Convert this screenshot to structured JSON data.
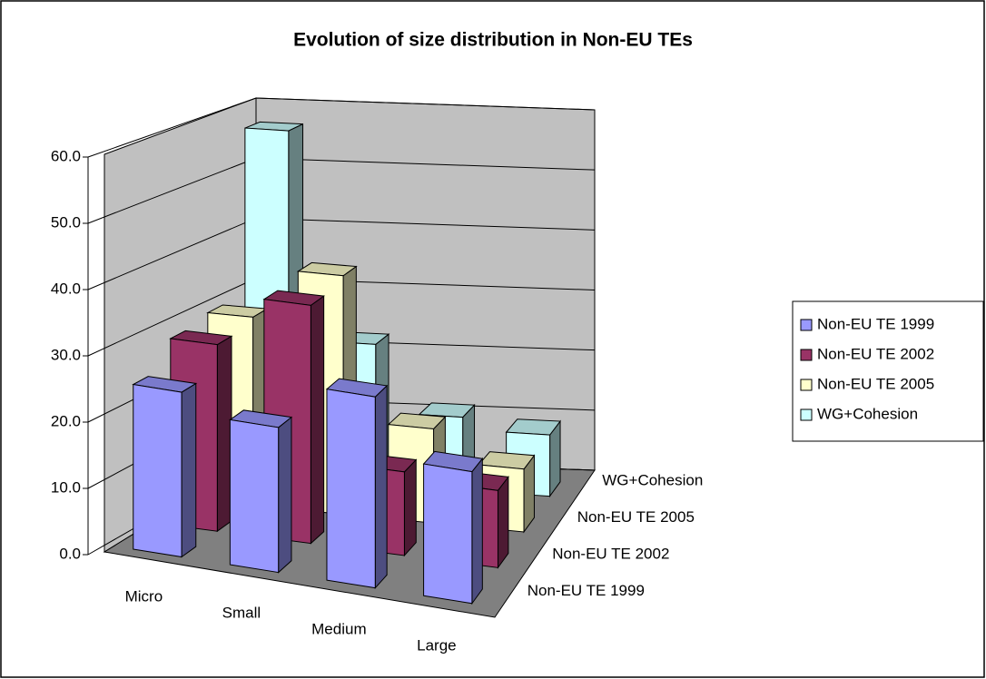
{
  "chart_data": {
    "type": "bar3d",
    "title": "Evolution of size distribution in Non-EU TEs",
    "categories": [
      "Micro",
      "Small",
      "Medium",
      "Large"
    ],
    "series": [
      {
        "name": "Non-EU TE 1999",
        "color": "#9999ff",
        "values": [
          25,
          22,
          29,
          20
        ]
      },
      {
        "name": "Non-EU TE 2002",
        "color": "#993366",
        "values": [
          29,
          37,
          13,
          12
        ]
      },
      {
        "name": "Non-EU TE 2005",
        "color": "#ffffcc",
        "values": [
          30,
          38,
          15,
          10
        ]
      },
      {
        "name": "WG+Cohesion",
        "color": "#ccffff",
        "values": [
          57,
          23,
          12,
          10
        ]
      }
    ],
    "ylim": [
      0,
      60
    ],
    "yticks": [
      {
        "value": 0,
        "label": "0.0"
      },
      {
        "value": 10,
        "label": "10.0"
      },
      {
        "value": 20,
        "label": "20.0"
      },
      {
        "value": 30,
        "label": "30.0"
      },
      {
        "value": 40,
        "label": "40.0"
      },
      {
        "value": 50,
        "label": "50.0"
      },
      {
        "value": 60,
        "label": "60.0"
      }
    ],
    "grid": true,
    "legend": "right"
  }
}
